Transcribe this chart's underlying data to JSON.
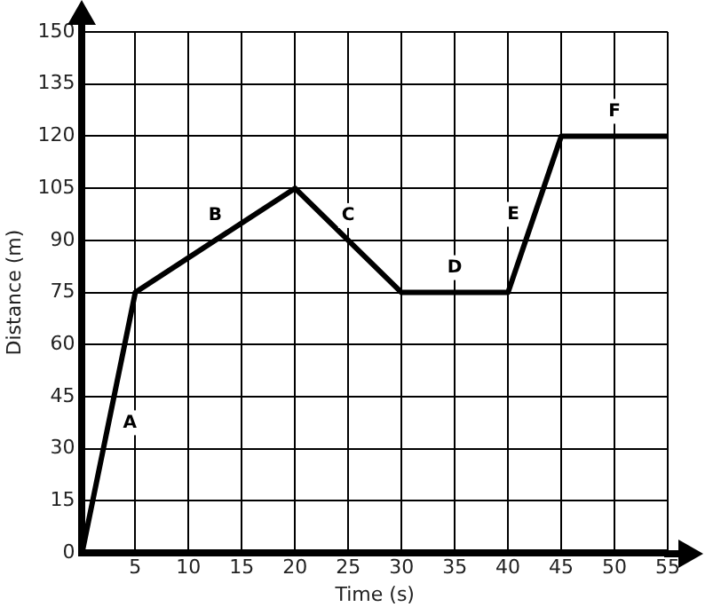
{
  "chart_data": {
    "type": "line",
    "xlabel": "Time (s)",
    "ylabel": "Distance (m)",
    "x": [
      0,
      5,
      20,
      30,
      40,
      45,
      55
    ],
    "series": [
      {
        "color": "#000000",
        "values": [
          0,
          75,
          105,
          75,
          75,
          120,
          120
        ]
      }
    ],
    "xlim": [
      0,
      55
    ],
    "ylim": [
      0,
      150
    ],
    "xticks": [
      {
        "value": 0,
        "label": null
      },
      5,
      10,
      15,
      20,
      25,
      30,
      35,
      40,
      45,
      50,
      55
    ],
    "yticks": [
      0,
      15,
      30,
      45,
      60,
      75,
      90,
      105,
      120,
      135,
      150
    ],
    "grid": true,
    "legend": false,
    "marker": "none",
    "line_style": "solid",
    "annotations": [
      "A",
      "B",
      "C",
      "D",
      "E",
      "F"
    ]
  }
}
